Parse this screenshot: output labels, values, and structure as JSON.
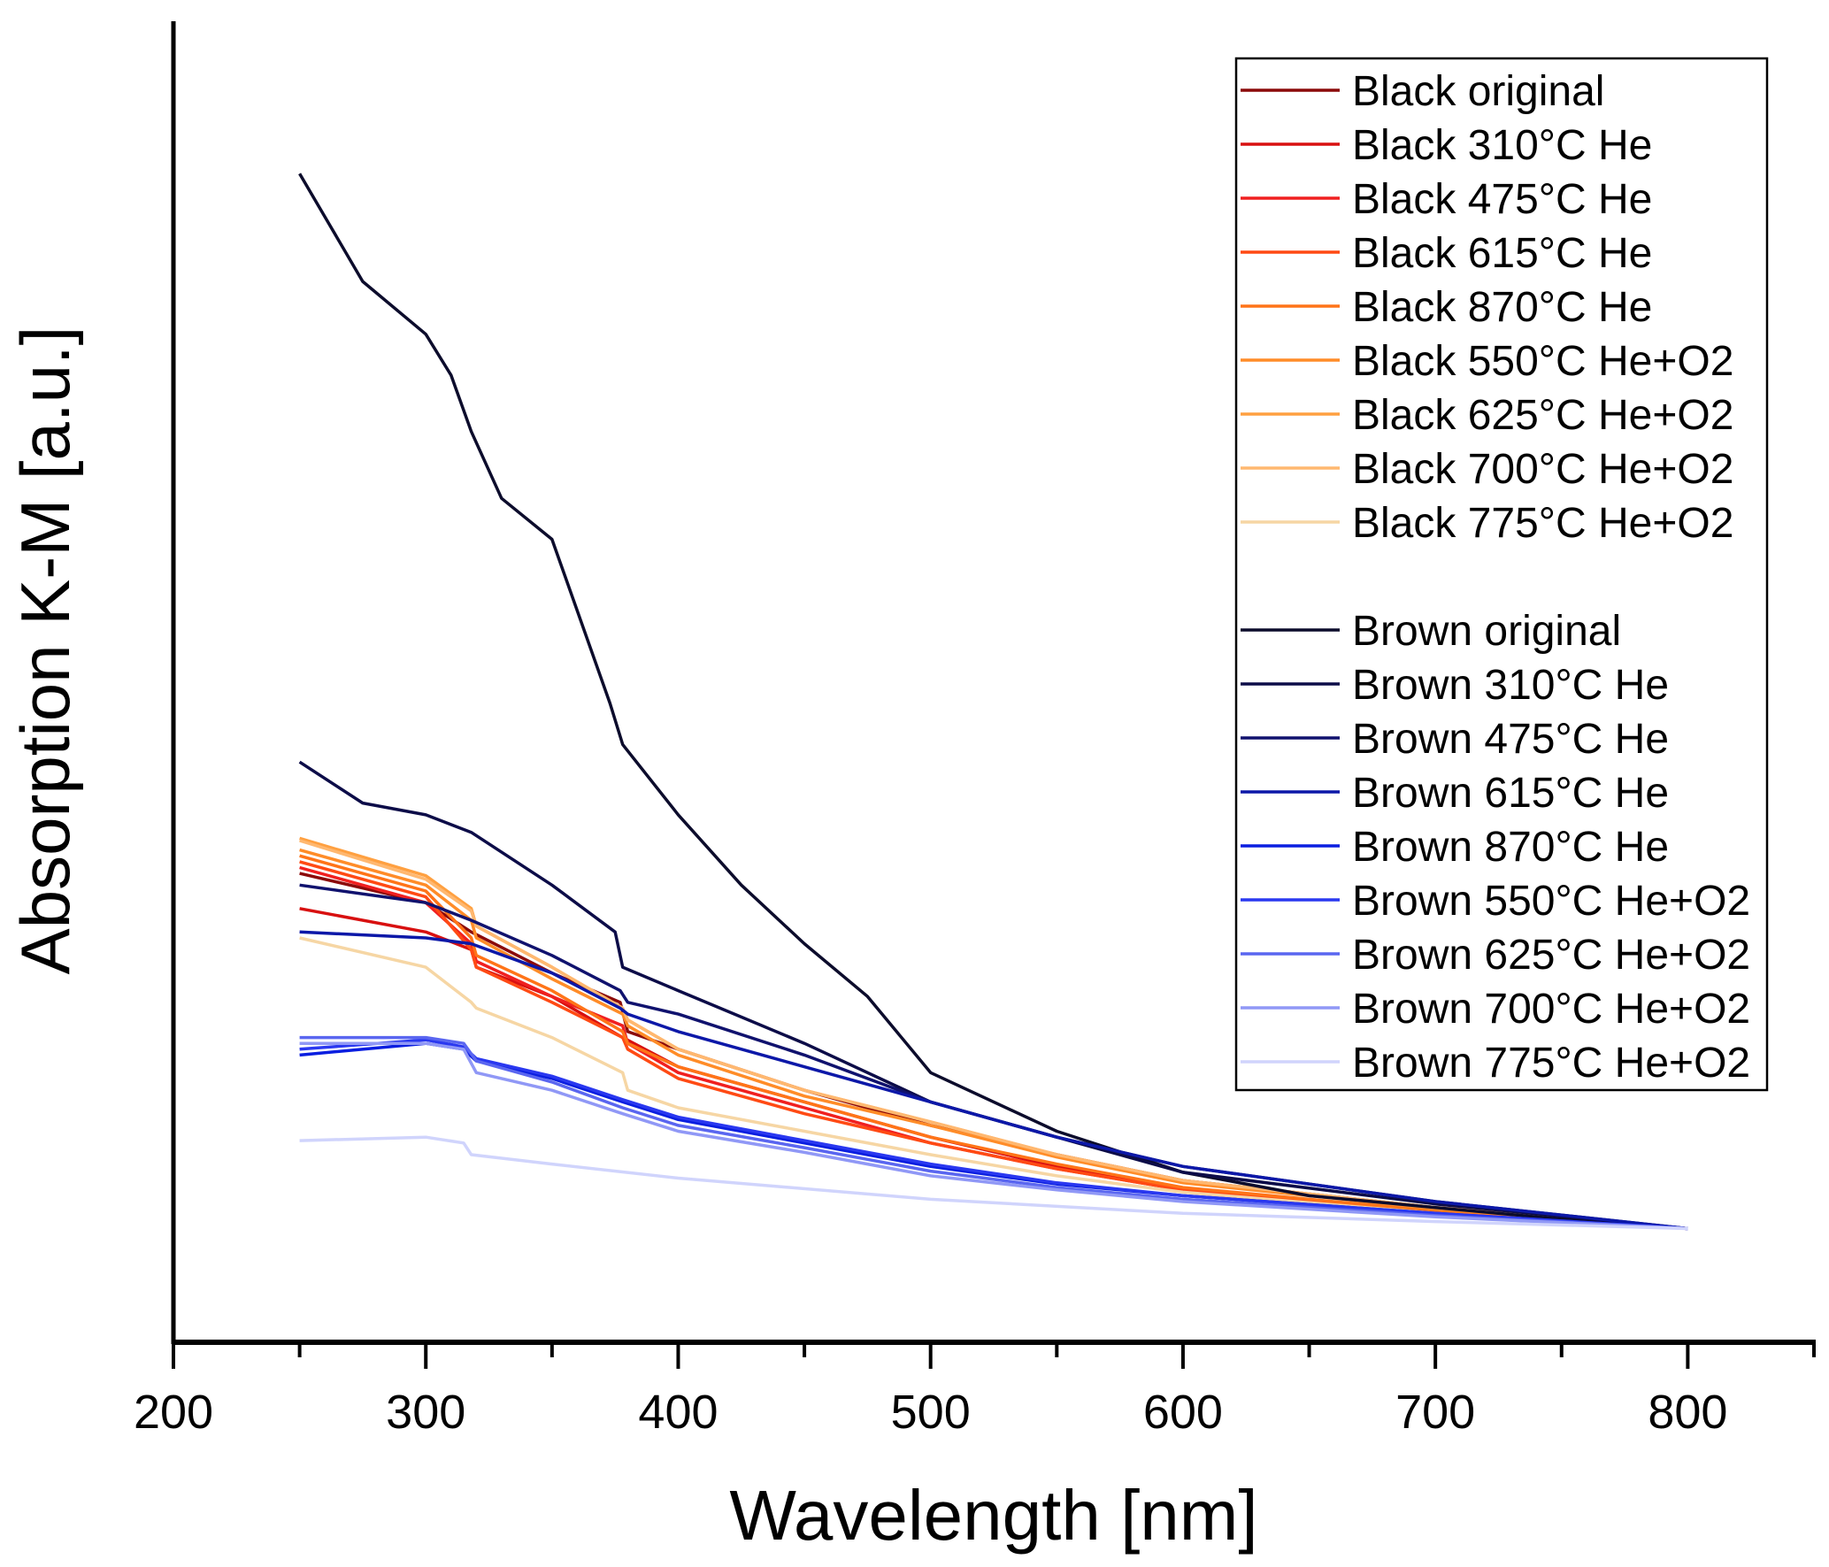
{
  "chart_data": {
    "type": "line",
    "title": "",
    "xlabel": "Wavelength [nm]",
    "ylabel": "Absorption K-M [a.u.]",
    "xlim": [
      200,
      850
    ],
    "ylim": [
      0,
      11.27
    ],
    "xticks": [
      200,
      300,
      400,
      500,
      600,
      700,
      800
    ],
    "xticks_minor": [
      250,
      350,
      450,
      550,
      650,
      750,
      850
    ],
    "yticks": [],
    "grid": false,
    "legend_placement": "top-right",
    "series": [
      {
        "name": "Black original",
        "color": "#8b0a0a",
        "x": [
          250,
          300,
          318,
          350,
          377,
          380,
          400,
          450,
          500,
          550,
          600,
          700,
          800
        ],
        "y": [
          4.0,
          3.75,
          3.5,
          3.15,
          2.9,
          2.65,
          2.5,
          2.15,
          1.85,
          1.6,
          1.38,
          1.15,
          0.97
        ]
      },
      {
        "name": "Black 310°C He",
        "color": "#d81010",
        "x": [
          250,
          300,
          318,
          320,
          350,
          378,
          400,
          450,
          500,
          550,
          600,
          700,
          800
        ],
        "y": [
          3.7,
          3.5,
          3.35,
          3.2,
          2.95,
          2.6,
          2.35,
          2.05,
          1.75,
          1.5,
          1.3,
          1.1,
          0.97
        ]
      },
      {
        "name": "Black 475°C He",
        "color": "#f02020",
        "x": [
          250,
          300,
          318,
          320,
          350,
          378,
          380,
          400,
          450,
          500,
          550,
          600,
          700,
          800
        ],
        "y": [
          4.05,
          3.75,
          3.4,
          3.25,
          2.95,
          2.7,
          2.55,
          2.3,
          2.0,
          1.7,
          1.48,
          1.3,
          1.1,
          0.97
        ]
      },
      {
        "name": "Black 615°C He",
        "color": "#ff4a14",
        "x": [
          250,
          300,
          318,
          320,
          350,
          378,
          380,
          400,
          450,
          500,
          550,
          600,
          700,
          800
        ],
        "y": [
          4.1,
          3.8,
          3.35,
          3.2,
          2.9,
          2.6,
          2.5,
          2.25,
          1.95,
          1.7,
          1.48,
          1.3,
          1.1,
          0.97
        ]
      },
      {
        "name": "Black 870°C He",
        "color": "#ff7418",
        "x": [
          250,
          300,
          318,
          320,
          350,
          378,
          380,
          400,
          450,
          500,
          550,
          600,
          700,
          800
        ],
        "y": [
          4.15,
          3.85,
          3.45,
          3.3,
          3.0,
          2.65,
          2.55,
          2.35,
          2.05,
          1.75,
          1.52,
          1.32,
          1.12,
          0.97
        ]
      },
      {
        "name": "Black 550°C He+O2",
        "color": "#ff8c28",
        "x": [
          250,
          300,
          318,
          320,
          350,
          378,
          380,
          400,
          450,
          500,
          550,
          600,
          700,
          800
        ],
        "y": [
          4.2,
          3.9,
          3.6,
          3.45,
          3.1,
          2.8,
          2.7,
          2.45,
          2.1,
          1.85,
          1.58,
          1.36,
          1.14,
          0.97
        ]
      },
      {
        "name": "Black 625°C He+O2",
        "color": "#ffa040",
        "x": [
          250,
          300,
          318,
          320,
          350,
          378,
          380,
          400,
          450,
          500,
          550,
          600,
          700,
          800
        ],
        "y": [
          4.3,
          3.98,
          3.7,
          3.55,
          3.2,
          2.85,
          2.75,
          2.5,
          2.15,
          1.88,
          1.6,
          1.38,
          1.15,
          0.97
        ]
      },
      {
        "name": "Black 700°C He+O2",
        "color": "#ffb870",
        "x": [
          250,
          300,
          318,
          320,
          350,
          378,
          380,
          400,
          450,
          500,
          550,
          600,
          700,
          800
        ],
        "y": [
          4.28,
          3.95,
          3.68,
          3.55,
          3.2,
          2.85,
          2.75,
          2.5,
          2.15,
          1.88,
          1.6,
          1.38,
          1.15,
          0.97
        ]
      },
      {
        "name": "Black 775°C He+O2",
        "color": "#f6d6a4",
        "x": [
          250,
          300,
          318,
          320,
          350,
          378,
          380,
          400,
          450,
          500,
          550,
          600,
          700,
          800
        ],
        "y": [
          3.45,
          3.2,
          2.9,
          2.85,
          2.6,
          2.3,
          2.15,
          2.0,
          1.8,
          1.6,
          1.42,
          1.28,
          1.1,
          0.97
        ]
      },
      {
        "name": "Brown original",
        "color": "#0c0c2c",
        "x": [
          250,
          275,
          300,
          310,
          318,
          330,
          350,
          373,
          378,
          400,
          425,
          450,
          475,
          500,
          550,
          600,
          650,
          700,
          750,
          800
        ],
        "y": [
          9.97,
          9.05,
          8.6,
          8.25,
          7.77,
          7.2,
          6.85,
          5.45,
          5.1,
          4.5,
          3.9,
          3.4,
          2.95,
          2.3,
          1.8,
          1.45,
          1.25,
          1.15,
          1.05,
          0.97
        ]
      },
      {
        "name": "Brown 310°C He",
        "color": "#0c0c48",
        "x": [
          250,
          275,
          300,
          318,
          350,
          375,
          378,
          400,
          450,
          500,
          550,
          600,
          700,
          800
        ],
        "y": [
          4.95,
          4.6,
          4.5,
          4.35,
          3.9,
          3.5,
          3.2,
          3.0,
          2.55,
          2.05,
          1.75,
          1.45,
          1.18,
          0.97
        ]
      },
      {
        "name": "Brown 475°C He",
        "color": "#10126e",
        "x": [
          250,
          300,
          318,
          350,
          377,
          380,
          400,
          450,
          500,
          550,
          600,
          700,
          800
        ],
        "y": [
          3.9,
          3.75,
          3.6,
          3.3,
          3.0,
          2.9,
          2.8,
          2.45,
          2.05,
          1.75,
          1.5,
          1.2,
          0.97
        ]
      },
      {
        "name": "Brown 615°C He",
        "color": "#0c18a8",
        "x": [
          250,
          300,
          318,
          350,
          377,
          380,
          400,
          450,
          500,
          550,
          600,
          700,
          800
        ],
        "y": [
          3.5,
          3.45,
          3.4,
          3.15,
          2.85,
          2.8,
          2.65,
          2.35,
          2.05,
          1.75,
          1.5,
          1.2,
          0.97
        ]
      },
      {
        "name": "Brown 870°C He",
        "color": "#0a1ee0",
        "x": [
          250,
          300,
          315,
          320,
          350,
          378,
          400,
          450,
          500,
          550,
          600,
          700,
          800
        ],
        "y": [
          2.45,
          2.55,
          2.5,
          2.4,
          2.25,
          2.05,
          1.9,
          1.7,
          1.5,
          1.35,
          1.25,
          1.1,
          0.97
        ]
      },
      {
        "name": "Brown 550°C He+O2",
        "color": "#2a38f0",
        "x": [
          250,
          300,
          315,
          320,
          350,
          378,
          400,
          450,
          500,
          550,
          600,
          700,
          800
        ],
        "y": [
          2.5,
          2.58,
          2.52,
          2.42,
          2.27,
          2.07,
          1.92,
          1.72,
          1.52,
          1.36,
          1.25,
          1.1,
          0.97
        ]
      },
      {
        "name": "Brown 625°C He+O2",
        "color": "#5a66f0",
        "x": [
          250,
          300,
          315,
          320,
          350,
          378,
          400,
          450,
          500,
          550,
          600,
          700,
          800
        ],
        "y": [
          2.6,
          2.6,
          2.55,
          2.4,
          2.22,
          2.0,
          1.85,
          1.66,
          1.46,
          1.32,
          1.22,
          1.08,
          0.97
        ]
      },
      {
        "name": "Brown 700°C He+O2",
        "color": "#9098f6",
        "x": [
          250,
          300,
          315,
          320,
          350,
          378,
          400,
          450,
          500,
          550,
          600,
          700,
          800
        ],
        "y": [
          2.55,
          2.55,
          2.5,
          2.3,
          2.15,
          1.95,
          1.8,
          1.62,
          1.42,
          1.3,
          1.2,
          1.07,
          0.97
        ]
      },
      {
        "name": "Brown 775°C He+O2",
        "color": "#d0d4fc",
        "x": [
          250,
          300,
          315,
          318,
          350,
          400,
          500,
          600,
          700,
          800
        ],
        "y": [
          1.72,
          1.75,
          1.7,
          1.6,
          1.52,
          1.4,
          1.22,
          1.1,
          1.03,
          0.97
        ]
      }
    ]
  }
}
